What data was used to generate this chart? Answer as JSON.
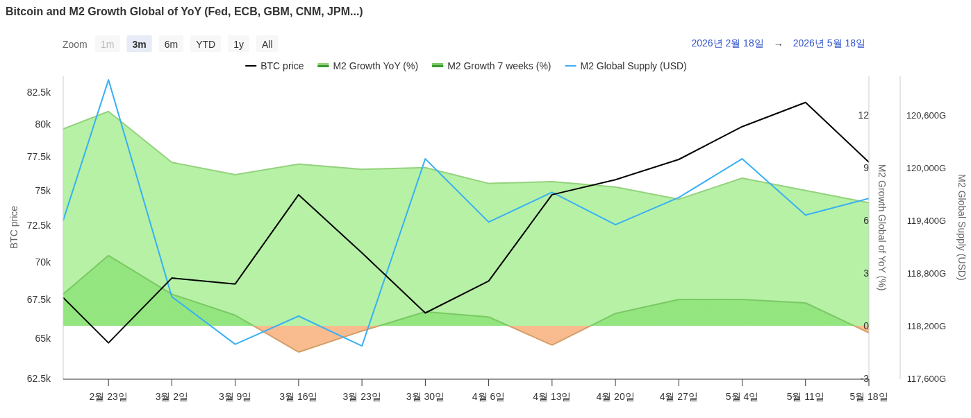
{
  "chart_data": {
    "type": "line",
    "title": "Bitcoin and M2 Growth Global of YoY (Fed, ECB, GBM, CNM, JPM...)",
    "ylabel": "BTC price",
    "y2label": "M2 Growth Global of YoY (%)",
    "y3label": "M2 Global Supply (USD)",
    "annotations": [
      "Zoom",
      "1m",
      "3m",
      "6m",
      "YTD",
      "1y",
      "All",
      "2026년 2월 18일",
      "→",
      "2026년 5월 18일"
    ],
    "x": [
      "2026-02-18",
      "2026-02-23",
      "2026-03-02",
      "2026-03-09",
      "2026-03-16",
      "2026-03-23",
      "2026-03-30",
      "2026-04-06",
      "2026-04-13",
      "2026-04-20",
      "2026-04-27",
      "2026-05-04",
      "2026-05-11",
      "2026-05-18"
    ],
    "xlim": [
      "2026-02-18",
      "2026-05-18"
    ],
    "xticks": [
      {
        "value": "2026-02-23",
        "label": "2월 23일"
      },
      {
        "value": "2026-03-02",
        "label": "3월 2일"
      },
      {
        "value": "2026-03-09",
        "label": "3월 9일"
      },
      {
        "value": "2026-03-16",
        "label": "3월 16일"
      },
      {
        "value": "2026-03-23",
        "label": "3월 23일"
      },
      {
        "value": "2026-03-30",
        "label": "3월 30일"
      },
      {
        "value": "2026-04-06",
        "label": "4월 6일"
      },
      {
        "value": "2026-04-13",
        "label": "4월 13일"
      },
      {
        "value": "2026-04-20",
        "label": "4월 20일"
      },
      {
        "value": "2026-04-27",
        "label": "4월 27일"
      },
      {
        "value": "2026-05-04",
        "label": "5월 4일"
      },
      {
        "value": "2026-05-11",
        "label": "5월 11일"
      },
      {
        "value": "2026-05-18",
        "label": "5월 18일"
      }
    ],
    "log": "y",
    "ylim": [
      62500,
      83800
    ],
    "yticks": [
      {
        "value": 62500,
        "label": "62.5k"
      },
      {
        "value": 65000,
        "label": "65k"
      },
      {
        "value": 67500,
        "label": "67.5k"
      },
      {
        "value": 70000,
        "label": "70k"
      },
      {
        "value": 72500,
        "label": "72.5k"
      },
      {
        "value": 75000,
        "label": "75k"
      },
      {
        "value": 77500,
        "label": "77.5k"
      },
      {
        "value": 80000,
        "label": "80k"
      },
      {
        "value": 82500,
        "label": "82.5k"
      }
    ],
    "y2lim": [
      -3,
      14.2
    ],
    "y2ticks": [
      -3,
      0,
      3,
      6,
      9,
      12
    ],
    "y3lim": [
      117600,
      121040
    ],
    "y3ticks": [
      {
        "value": 117600,
        "label": "117,600G"
      },
      {
        "value": 118200,
        "label": "118,200G"
      },
      {
        "value": 118800,
        "label": "118,800G"
      },
      {
        "value": 119400,
        "label": "119,400G"
      },
      {
        "value": 120000,
        "label": "120,000G"
      },
      {
        "value": 120600,
        "label": "120,600G"
      }
    ],
    "legend": "top",
    "marker": "none",
    "grid": false,
    "series": [
      {
        "name": "BTC price",
        "color": "#000000",
        "values": [
          67600,
          64700,
          68900,
          68500,
          74700,
          70600,
          66600,
          68700,
          74700,
          75800,
          77300,
          79800,
          81700,
          77100
        ]
      },
      {
        "name": "M2 Growth YoY (%)",
        "type": "area",
        "axis": "y2",
        "color": "#aef09c",
        "values": [
          11.2,
          12.2,
          9.3,
          8.6,
          9.2,
          8.9,
          9.0,
          8.1,
          8.2,
          7.9,
          7.2,
          8.4,
          7.7,
          7.0
        ]
      },
      {
        "name": "M2 Growth 7 weeks (%)",
        "type": "area",
        "axis": "y2",
        "color": "#90e47c",
        "colors": [
          "#90e47c",
          "#90e47c",
          "#90e47c",
          "#90e47c",
          "#f8b482",
          "#f8b482",
          "#90e47c",
          "#90e47c",
          "#f8b482",
          "#90e47c",
          "#90e47c",
          "#90e47c",
          "#90e47c",
          "#f8b482"
        ],
        "values": [
          1.8,
          4.0,
          1.8,
          0.6,
          -1.5,
          -0.3,
          0.8,
          0.5,
          -1.1,
          0.7,
          1.5,
          1.5,
          1.3,
          -0.4
        ]
      },
      {
        "name": "M2 Global Supply (USD)",
        "axis": "y3",
        "color": "#3ab0f2",
        "values": [
          119400,
          121000,
          118530,
          117990,
          118310,
          117970,
          120100,
          119380,
          119720,
          119350,
          119660,
          120100,
          119460,
          119650
        ]
      }
    ]
  }
}
